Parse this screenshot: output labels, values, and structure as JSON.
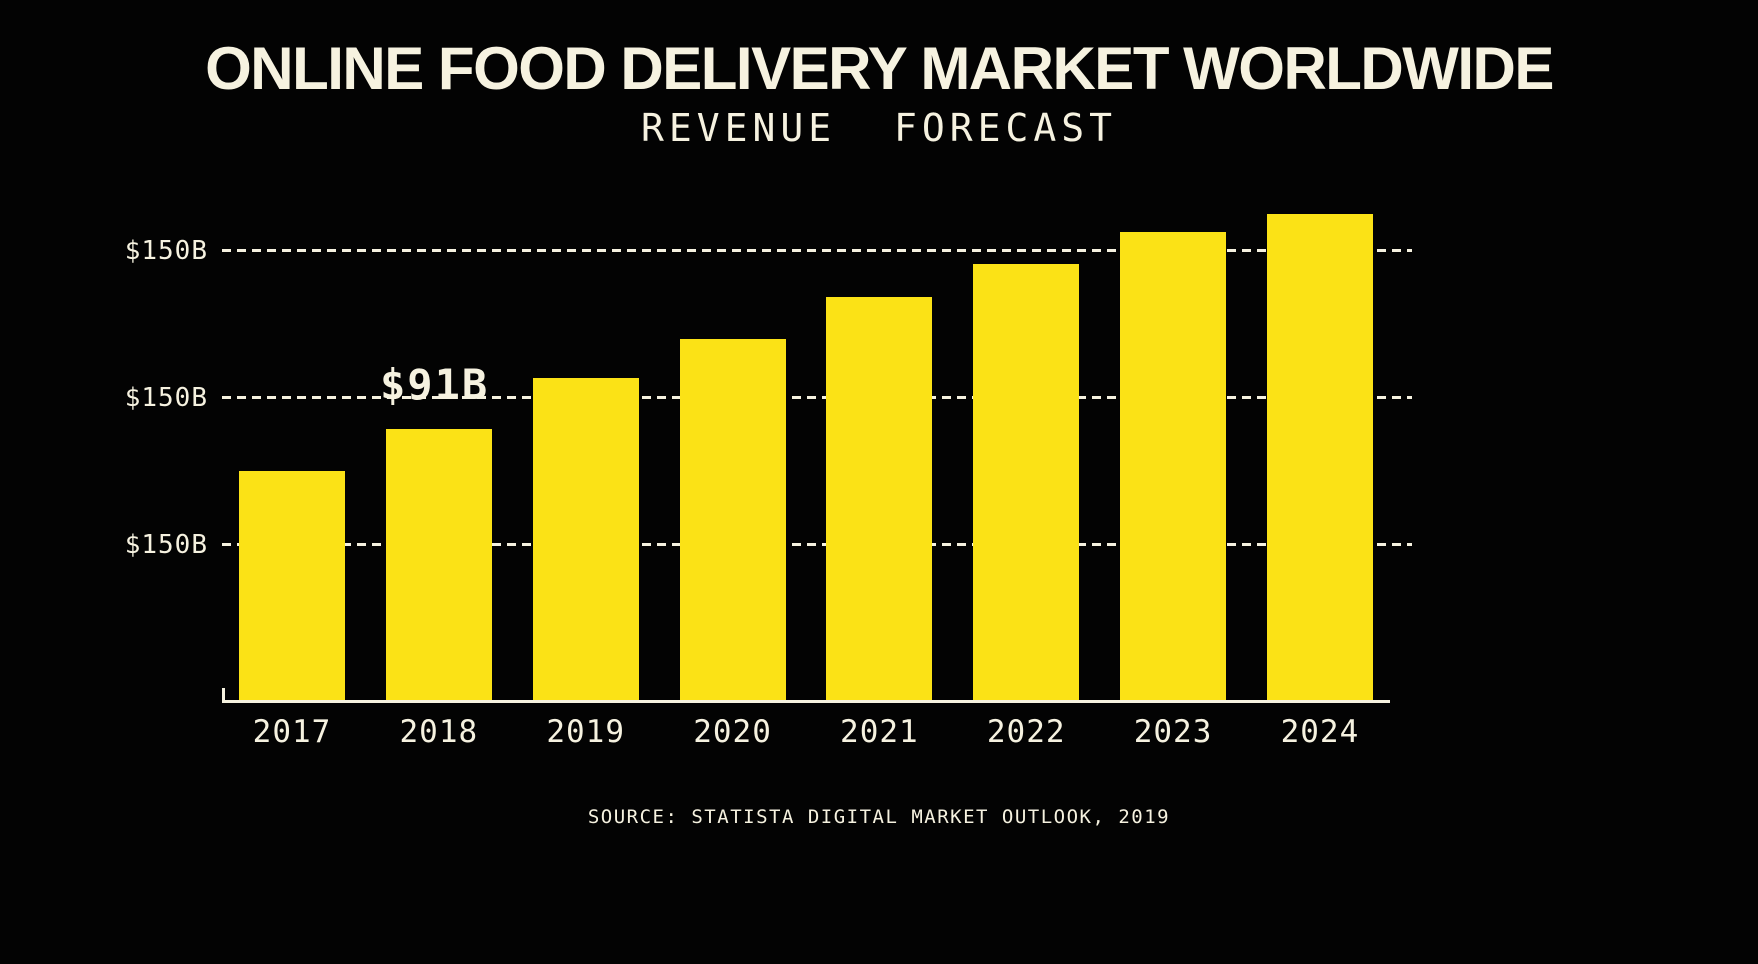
{
  "title": "ONLINE FOOD DELIVERY MARKET WORLDWIDE",
  "subtitle": "REVENUE FORECAST",
  "source": "SOURCE: STATISTA DIGITAL MARKET OUTLOOK, 2019",
  "colors": {
    "background": "#030303",
    "bar": "#fbe216",
    "text": "#f6f2e0"
  },
  "chart_data": {
    "type": "bar",
    "title": "ONLINE FOOD DELIVERY MARKET WORLDWIDE",
    "subtitle": "REVENUE FORECAST",
    "categories": [
      "2017",
      "2018",
      "2019",
      "2020",
      "2021",
      "2022",
      "2023",
      "2024"
    ],
    "values": [
      77,
      91,
      108,
      121,
      135,
      146,
      157,
      163
    ],
    "unit": "billion USD",
    "xlabel": "",
    "ylabel": "",
    "ytick_labels": [
      "$150B",
      "$150B",
      "$150B"
    ],
    "grid": "horizontal-dashed",
    "legend": "none",
    "annotation": {
      "text": "$91B",
      "category": "2018",
      "value": 91
    },
    "source": "SOURCE: STATISTA DIGITAL MARKET OUTLOOK, 2019"
  }
}
